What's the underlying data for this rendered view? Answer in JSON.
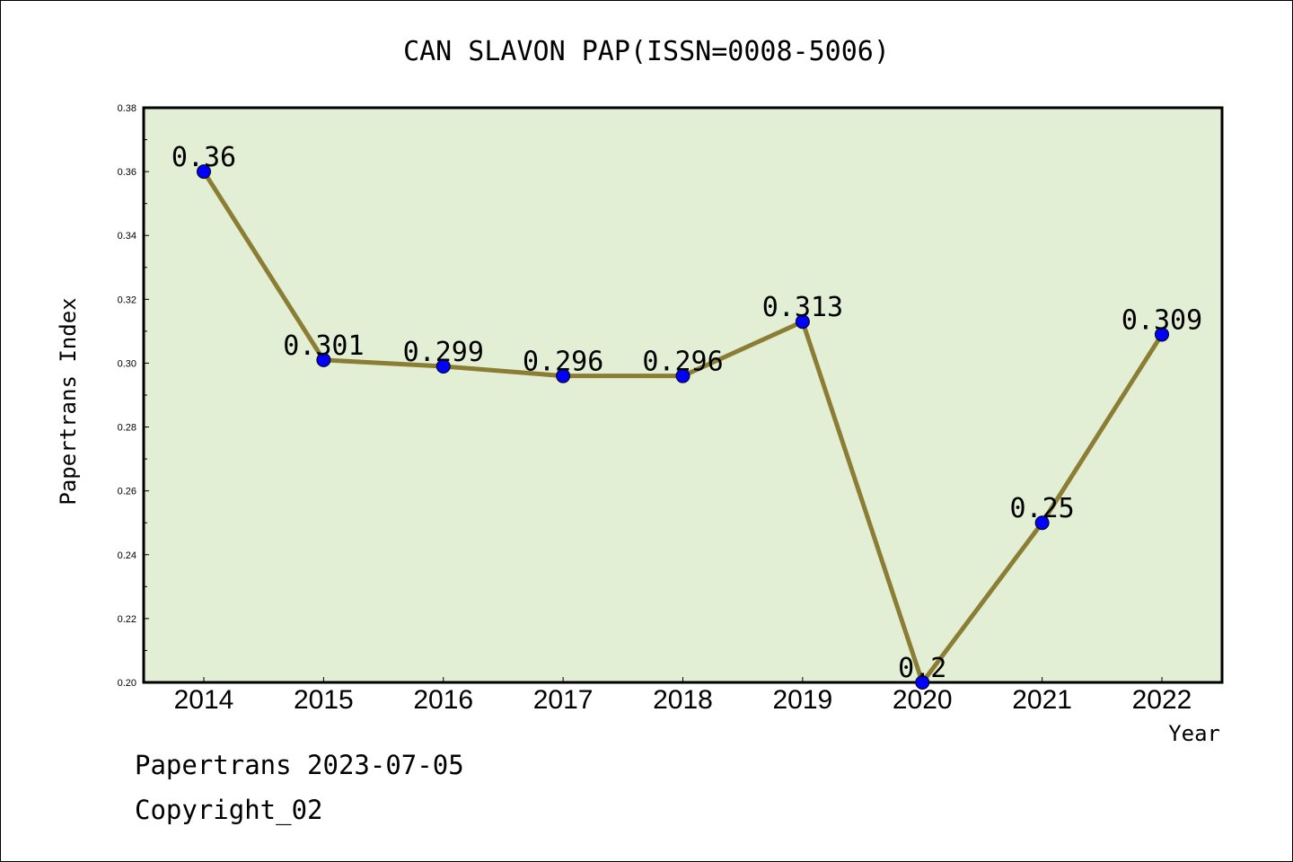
{
  "chart_data": {
    "type": "line",
    "title": "CAN SLAVON PAP(ISSN=0008-5006)",
    "xlabel": "Year",
    "ylabel": "Papertrans Index",
    "categories": [
      "2014",
      "2015",
      "2016",
      "2017",
      "2018",
      "2019",
      "2020",
      "2021",
      "2022"
    ],
    "values": [
      0.36,
      0.301,
      0.299,
      0.296,
      0.296,
      0.313,
      0.2,
      0.25,
      0.309
    ],
    "data_labels": [
      "0.36",
      "0.301",
      "0.299",
      "0.296",
      "0.296",
      "0.313",
      "0.2",
      "0.25",
      "0.309"
    ],
    "ylim": [
      0.2,
      0.38
    ],
    "yticks": [
      "0.20",
      "0.22",
      "0.24",
      "0.26",
      "0.28",
      "0.30",
      "0.32",
      "0.34",
      "0.36",
      "0.38"
    ],
    "grid": false,
    "legend": "none",
    "colors": {
      "plot_background": "#e2efd4",
      "line": "#8b7d34",
      "marker": "#0000ff"
    }
  },
  "footer": {
    "date_line": "Papertrans 2023-07-05",
    "copyright": "Copyright_02"
  }
}
